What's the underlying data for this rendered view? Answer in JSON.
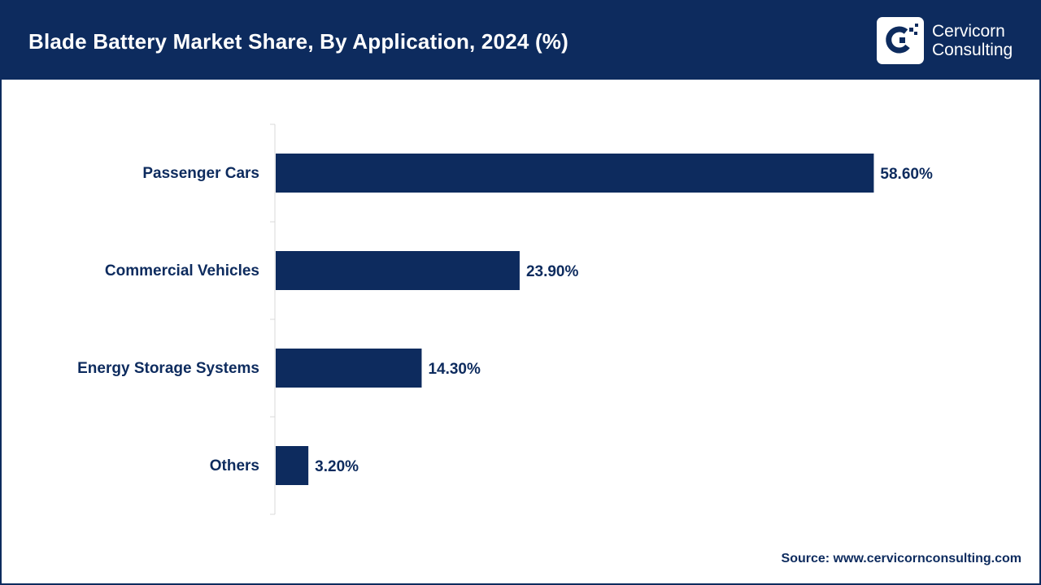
{
  "header": {
    "title": "Blade Battery Market Share, By Application, 2024 (%)",
    "logo_line1": "Cervicorn",
    "logo_line2": "Consulting",
    "logo_icon": "cervicorn-logo-icon"
  },
  "colors": {
    "primary": "#0d2b5e",
    "background": "#ffffff"
  },
  "chart_data": {
    "type": "bar",
    "orientation": "horizontal",
    "categories": [
      "Passenger Cars",
      "Commercial Vehicles",
      "Energy Storage Systems",
      "Others"
    ],
    "values": [
      58.6,
      23.9,
      14.3,
      3.2
    ],
    "data_labels": [
      "58.60%",
      "23.90%",
      "14.30%",
      "3.20%"
    ],
    "title": "Blade Battery Market Share, By Application, 2024 (%)",
    "xlabel": "",
    "ylabel": "",
    "xlim": [
      0,
      100
    ],
    "grid": false,
    "legend": "none"
  },
  "footer": {
    "source": "Source: www.cervicornconsulting.com"
  }
}
